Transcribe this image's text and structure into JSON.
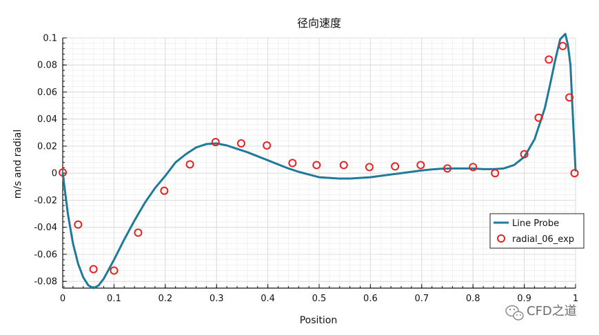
{
  "watermark": {
    "text": "CFD之道",
    "icon": "wechat-icon"
  },
  "chart_data": {
    "type": "line",
    "title": "径向速度",
    "xlabel": "Position",
    "ylabel": "m/s and radial",
    "xlim": [
      0,
      1
    ],
    "ylim": [
      -0.085,
      0.1
    ],
    "x_ticks": [
      0,
      0.1,
      0.2,
      0.3,
      0.4,
      0.5,
      0.6,
      0.7,
      0.8,
      0.9,
      1
    ],
    "x_tick_labels": [
      "0",
      "0.1",
      "0.2",
      "0.3",
      "0.4",
      "0.5",
      "0.6",
      "0.7",
      "0.8",
      "0.9",
      "1"
    ],
    "y_ticks": [
      -0.08,
      -0.06,
      -0.04,
      -0.02,
      0,
      0.02,
      0.04,
      0.06,
      0.08,
      0.1
    ],
    "y_tick_labels": [
      "-0.08",
      "-0.06",
      "-0.04",
      "-0.02",
      "0",
      "0.02",
      "0.04",
      "0.06",
      "0.08",
      "0.1"
    ],
    "grid": true,
    "legend_position": "right",
    "series": [
      {
        "name": "Line Probe",
        "style": "line",
        "color": "#1f7a9a",
        "x": [
          0,
          0.01,
          0.02,
          0.03,
          0.04,
          0.05,
          0.06,
          0.07,
          0.08,
          0.09,
          0.1,
          0.12,
          0.14,
          0.16,
          0.18,
          0.2,
          0.22,
          0.24,
          0.26,
          0.28,
          0.3,
          0.32,
          0.34,
          0.36,
          0.38,
          0.4,
          0.42,
          0.44,
          0.46,
          0.48,
          0.5,
          0.52,
          0.54,
          0.56,
          0.58,
          0.6,
          0.62,
          0.64,
          0.66,
          0.68,
          0.7,
          0.72,
          0.74,
          0.76,
          0.78,
          0.8,
          0.82,
          0.84,
          0.86,
          0.88,
          0.9,
          0.92,
          0.94,
          0.95,
          0.96,
          0.97,
          0.975,
          0.98,
          0.985,
          0.99,
          0.995,
          1.0
        ],
        "y": [
          0,
          -0.03,
          -0.052,
          -0.067,
          -0.077,
          -0.083,
          -0.085,
          -0.083,
          -0.078,
          -0.071,
          -0.064,
          -0.049,
          -0.035,
          -0.022,
          -0.011,
          -0.002,
          0.008,
          0.014,
          0.019,
          0.0215,
          0.022,
          0.0205,
          0.018,
          0.0155,
          0.0125,
          0.0095,
          0.0065,
          0.0035,
          0.001,
          -0.001,
          -0.003,
          -0.0035,
          -0.004,
          -0.004,
          -0.0035,
          -0.003,
          -0.002,
          -0.001,
          0,
          0.001,
          0.002,
          0.0028,
          0.0033,
          0.0035,
          0.0035,
          0.0035,
          0.003,
          0.003,
          0.0035,
          0.006,
          0.012,
          0.025,
          0.048,
          0.065,
          0.083,
          0.099,
          0.101,
          0.103,
          0.095,
          0.08,
          0.04,
          0.002
        ]
      },
      {
        "name": "radial_06_exp",
        "style": "markers",
        "color": "#e82020",
        "x": [
          0,
          0.03,
          0.06,
          0.1,
          0.147,
          0.198,
          0.248,
          0.298,
          0.348,
          0.398,
          0.448,
          0.495,
          0.548,
          0.598,
          0.648,
          0.698,
          0.75,
          0.8,
          0.843,
          0.9,
          0.928,
          0.948,
          0.975,
          0.988,
          0.998
        ],
        "y": [
          0.0005,
          -0.038,
          -0.071,
          -0.072,
          -0.044,
          -0.013,
          0.0065,
          0.023,
          0.022,
          0.0205,
          0.0075,
          0.006,
          0.006,
          0.0045,
          0.005,
          0.006,
          0.0035,
          0.0045,
          0,
          0.014,
          0.041,
          0.084,
          0.094,
          0.056,
          0
        ]
      }
    ]
  }
}
